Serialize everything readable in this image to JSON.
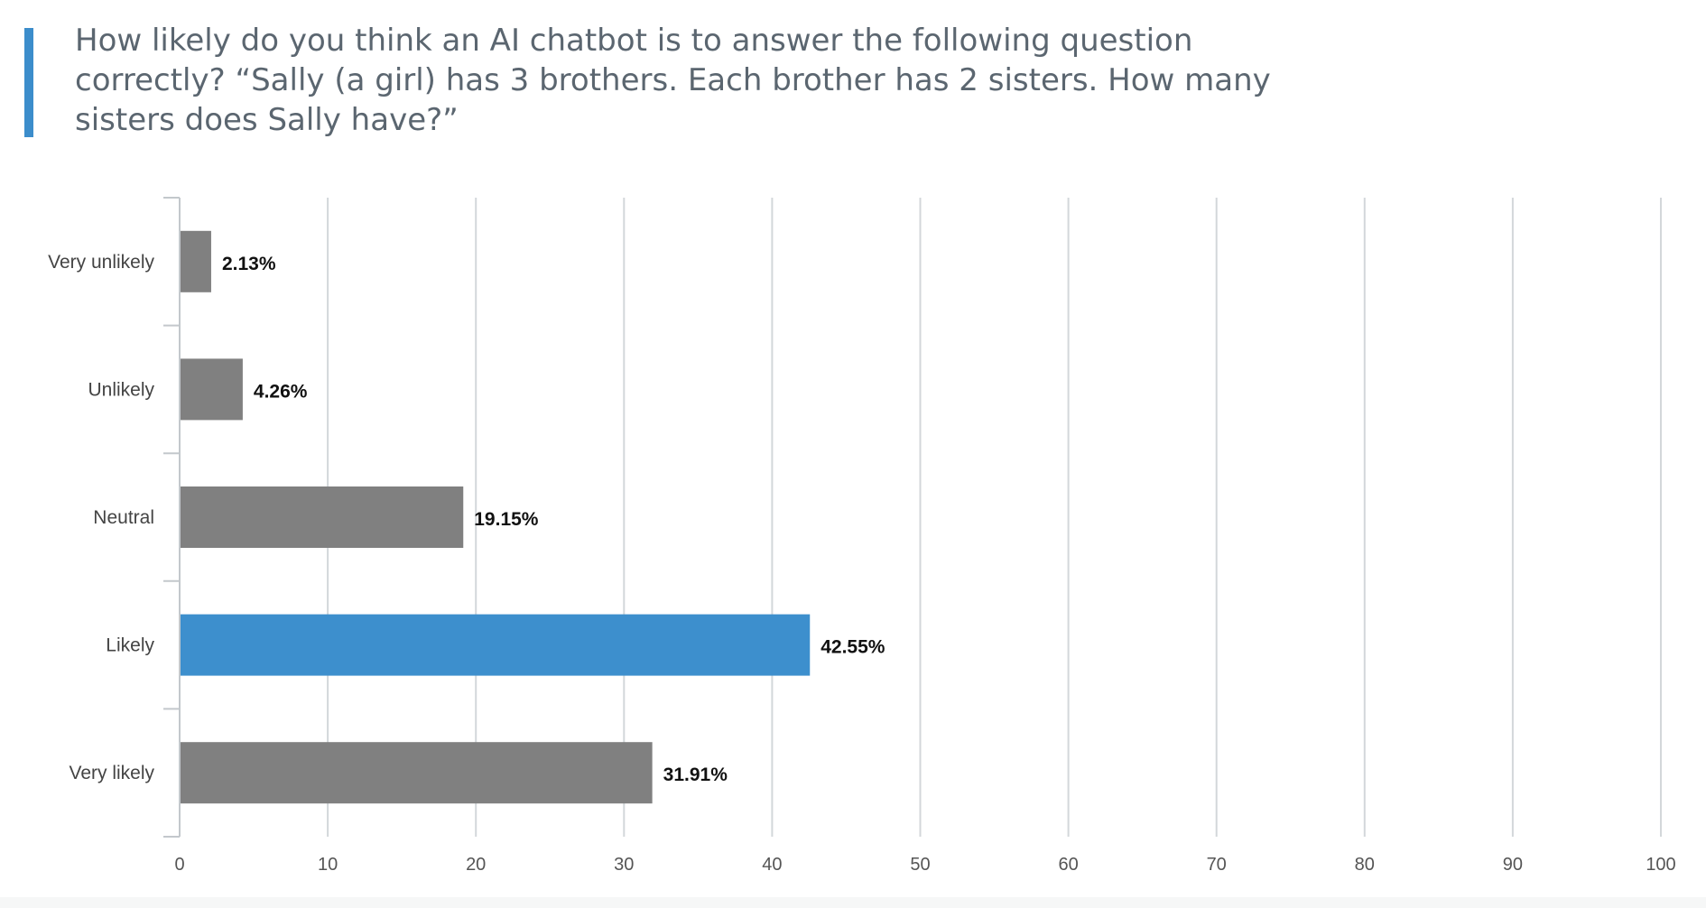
{
  "question": {
    "title": "How likely do you think an AI chatbot is to answer the following question correctly?  “Sally (a girl) has 3 brothers. Each brother has 2 sisters. How many sisters does Sally have?”",
    "accent_color": "#3c8dcb"
  },
  "chart_data": {
    "type": "bar",
    "orientation": "horizontal",
    "title": "",
    "xlabel": "",
    "ylabel": "",
    "categories": [
      "Very unlikely",
      "Unlikely",
      "Neutral",
      "Likely",
      "Very likely"
    ],
    "values": [
      2.13,
      4.26,
      19.15,
      42.55,
      31.91
    ],
    "value_labels": [
      "2.13%",
      "4.26%",
      "19.15%",
      "42.55%",
      "31.91%"
    ],
    "xlim": [
      0,
      100
    ],
    "xticks": [
      0,
      10,
      20,
      30,
      40,
      50,
      60,
      70,
      80,
      90,
      100
    ],
    "grid": true,
    "legend": "none",
    "bar_color": "#808080",
    "highlight_color": "#3d8fcd",
    "highlight_category": "Likely"
  }
}
